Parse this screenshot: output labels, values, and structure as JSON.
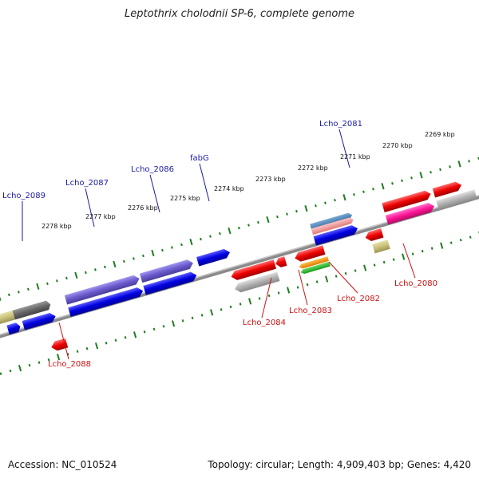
{
  "title": "Leptothrix cholodnii SP-6, complete genome",
  "footer": {
    "accession": "Accession: NC_010524",
    "topology": "Topology: circular; Length: 4,909,403 bp; Genes: 4,420"
  },
  "scale": {
    "labels": [
      "2278 kbp",
      "2277 kbp",
      "2276 kbp",
      "2275 kbp",
      "2274 kbp",
      "2273 kbp",
      "2272 kbp",
      "2271 kbp",
      "2270 kbp",
      "2269 kbp"
    ]
  },
  "genes_upper": [
    {
      "label": "Lcho_2089"
    },
    {
      "label": "Lcho_2087"
    },
    {
      "label": "Lcho_2086"
    },
    {
      "label": "fabG"
    },
    {
      "label": "Lcho_2081"
    }
  ],
  "genes_lower": [
    {
      "label": "Lcho_2088"
    },
    {
      "label": "Lcho_2084"
    },
    {
      "label": "Lcho_2083"
    },
    {
      "label": "Lcho_2082"
    },
    {
      "label": "Lcho_2080"
    }
  ],
  "colors": {
    "blue_label": "#1a1aa6",
    "red_label": "#cc1111",
    "tick": "#1e7d1e",
    "backbone": "#888888"
  }
}
